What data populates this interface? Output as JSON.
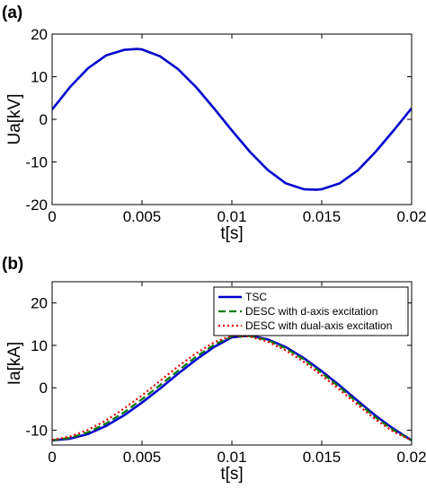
{
  "chart_data": [
    {
      "type": "line",
      "panel_label": "(a)",
      "xlabel": "t[s]",
      "ylabel": "Ua[kV]",
      "xlim": [
        0,
        0.02
      ],
      "ylim": [
        -20,
        20
      ],
      "xticks": [
        0,
        0.005,
        0.01,
        0.015,
        0.02
      ],
      "xtick_labels": [
        "0",
        "0.005",
        "0.01",
        "0.015",
        "0.02"
      ],
      "yticks": [
        -20,
        -10,
        0,
        10,
        20
      ],
      "ytick_labels": [
        "-20",
        "-10",
        "0",
        "10",
        "20"
      ],
      "grid": false,
      "legend": null,
      "series": [
        {
          "color": "#0000cc",
          "dash": "solid",
          "x": [
            0,
            0.001,
            0.002,
            0.003,
            0.004,
            0.0047,
            0.005,
            0.006,
            0.007,
            0.008,
            0.009,
            0.01,
            0.011,
            0.012,
            0.013,
            0.014,
            0.0147,
            0.015,
            0.016,
            0.017,
            0.018,
            0.019,
            0.02
          ],
          "y": [
            2.3,
            7.6,
            12.0,
            15.0,
            16.3,
            16.5,
            16.4,
            14.8,
            11.8,
            7.6,
            2.6,
            -2.6,
            -7.6,
            -11.9,
            -15.0,
            -16.4,
            -16.5,
            -16.4,
            -15.0,
            -12.0,
            -7.6,
            -2.6,
            2.6
          ]
        }
      ]
    },
    {
      "type": "line",
      "panel_label": "(b)",
      "xlabel": "t[s]",
      "ylabel": "Ia[kA]",
      "xlim": [
        0,
        0.02
      ],
      "ylim": [
        -13.5,
        25
      ],
      "xticks": [
        0,
        0.005,
        0.01,
        0.015,
        0.02
      ],
      "xtick_labels": [
        "0",
        "0.005",
        "0.01",
        "0.015",
        "0.02"
      ],
      "yticks": [
        -10,
        0,
        10,
        20
      ],
      "ytick_labels": [
        "-10",
        "0",
        "10",
        "20"
      ],
      "grid": false,
      "legend": "top-right",
      "series": [
        {
          "name": "TSC",
          "color": "#0000cc",
          "dash": "solid",
          "x": [
            0,
            0.001,
            0.002,
            0.003,
            0.004,
            0.005,
            0.006,
            0.007,
            0.008,
            0.009,
            0.01,
            0.011,
            0.012,
            0.013,
            0.014,
            0.015,
            0.016,
            0.017,
            0.018,
            0.019,
            0.02
          ],
          "y": [
            -12.4,
            -12.0,
            -10.9,
            -9.0,
            -6.5,
            -3.5,
            -0.2,
            3.3,
            6.6,
            9.6,
            11.9,
            12.3,
            11.4,
            9.6,
            7.0,
            3.9,
            0.5,
            -3.1,
            -6.6,
            -9.7,
            -12.4
          ]
        },
        {
          "name": "DESC with d-axis excitation",
          "color": "#007a00",
          "dash": "8,4",
          "x": [
            0,
            0.001,
            0.002,
            0.003,
            0.004,
            0.005,
            0.006,
            0.007,
            0.008,
            0.009,
            0.01,
            0.011,
            0.012,
            0.013,
            0.014,
            0.015,
            0.016,
            0.017,
            0.018,
            0.019,
            0.02
          ],
          "y": [
            -12.4,
            -11.8,
            -10.5,
            -8.4,
            -5.8,
            -2.7,
            0.6,
            4.0,
            7.3,
            10.1,
            12.1,
            12.2,
            11.2,
            9.3,
            6.7,
            3.5,
            0.1,
            -3.5,
            -7.0,
            -10.0,
            -12.4
          ]
        },
        {
          "name": "DESC with dual-axis excitation",
          "color": "#e60000",
          "dash": "2,3",
          "x": [
            0,
            0.001,
            0.002,
            0.003,
            0.004,
            0.005,
            0.006,
            0.007,
            0.008,
            0.009,
            0.01,
            0.011,
            0.012,
            0.013,
            0.014,
            0.015,
            0.016,
            0.017,
            0.018,
            0.019,
            0.02
          ],
          "y": [
            -12.3,
            -11.5,
            -9.9,
            -7.7,
            -4.9,
            -1.8,
            1.6,
            5.0,
            8.1,
            10.7,
            12.3,
            12.1,
            10.9,
            8.8,
            6.1,
            2.9,
            -0.5,
            -4.0,
            -7.5,
            -10.4,
            -12.4
          ]
        }
      ]
    }
  ]
}
